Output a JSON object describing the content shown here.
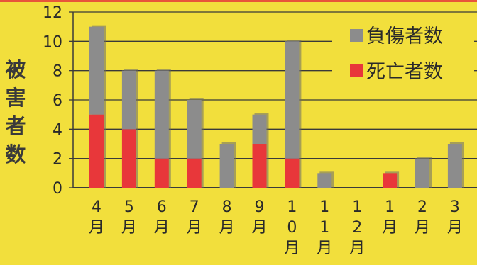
{
  "chart_data": {
    "type": "bar",
    "stacked": true,
    "ylabel": "被害者数",
    "ylim": [
      0,
      12
    ],
    "yticks": [
      0,
      2,
      4,
      6,
      8,
      10,
      12
    ],
    "grid": true,
    "legend_position": "top-right",
    "categories": [
      [
        "4",
        "月"
      ],
      [
        "5",
        "月"
      ],
      [
        "6",
        "月"
      ],
      [
        "7",
        "月"
      ],
      [
        "8",
        "月"
      ],
      [
        "9",
        "月"
      ],
      [
        "1",
        "0",
        "月"
      ],
      [
        "1",
        "1",
        "月"
      ],
      [
        "1",
        "2",
        "月"
      ],
      [
        "1",
        "月"
      ],
      [
        "2",
        "月"
      ],
      [
        "3",
        "月"
      ]
    ],
    "series": [
      {
        "name": "死亡者数",
        "color": "#e8373a",
        "values": [
          5,
          4,
          2,
          2,
          0,
          3,
          2,
          0,
          0,
          1,
          0,
          0
        ]
      },
      {
        "name": "負傷者数",
        "color": "#8c8c8c",
        "values": [
          6,
          4,
          6,
          4,
          3,
          2,
          8,
          1,
          0,
          0,
          2,
          3
        ]
      }
    ],
    "legend_order": [
      "負傷者数",
      "死亡者数"
    ],
    "background": "#f2df3c",
    "top_band_color": "#e8553a"
  }
}
